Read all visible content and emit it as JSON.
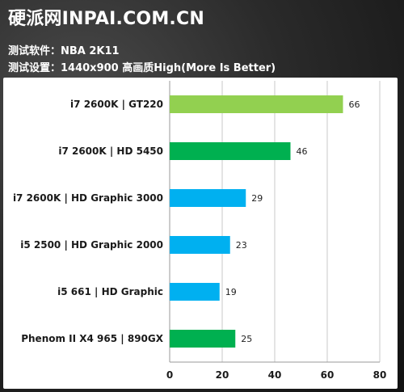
{
  "header": {
    "site_title": "硬派网INPAI.COM.CN",
    "software_line": "测试软件：NBA 2K11",
    "settings_line": "测试设置：1440x900 高画质High(More Is Better)"
  },
  "colors": {
    "light_green": "#92D050",
    "green": "#00B050",
    "blue": "#00B0F0"
  },
  "chart_data": {
    "type": "bar",
    "orientation": "horizontal",
    "categories": [
      "i7 2600K | GT220",
      "i7 2600K | HD 5450",
      "i7 2600K | HD Graphic 3000",
      "i5 2500 | HD Graphic 2000",
      "i5 661 | HD Graphic",
      "Phenom II X4 965 | 890GX"
    ],
    "values": [
      66,
      46,
      29,
      23,
      19,
      25
    ],
    "bar_colors": [
      "#92D050",
      "#00B050",
      "#00B0F0",
      "#00B0F0",
      "#00B0F0",
      "#00B050"
    ],
    "xlim": [
      0,
      80
    ],
    "xticks": [
      0,
      20,
      40,
      60,
      80
    ],
    "grid": true,
    "data_labels": true
  }
}
